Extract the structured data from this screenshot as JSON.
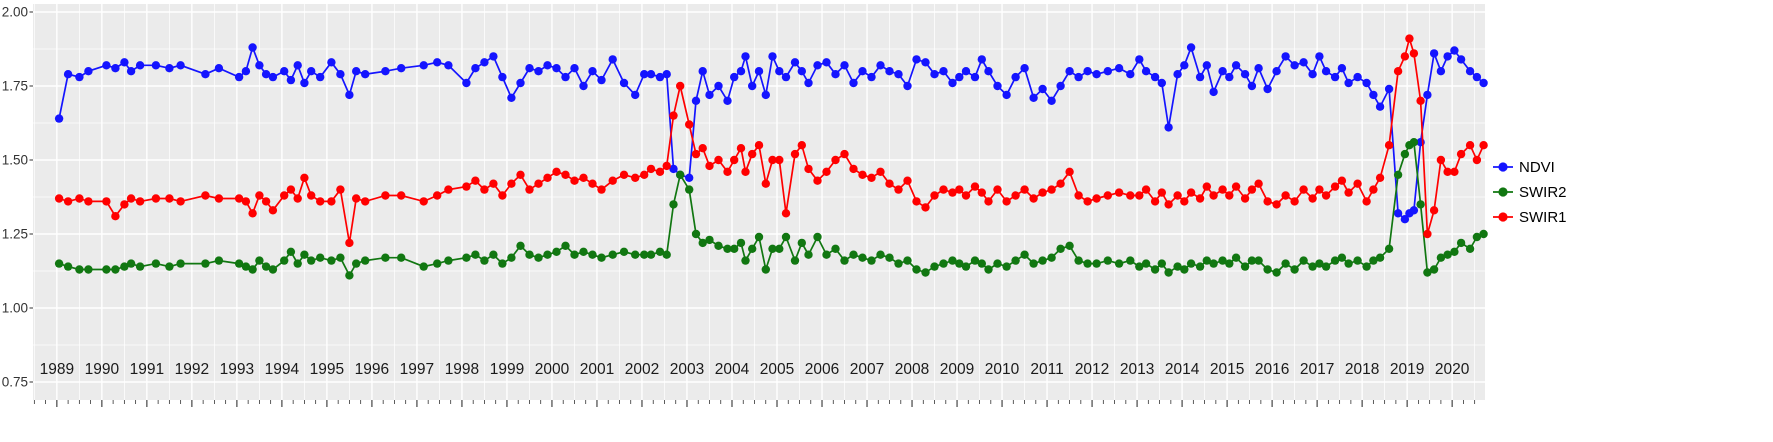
{
  "figure": {
    "background": "#FFFFFF",
    "panel_background": "#EBEBEB",
    "grid_color": "#FFFFFF",
    "axis_text_color": "#1A1A1A"
  },
  "legend": {
    "position": "right",
    "items": [
      {
        "label": "NDVI",
        "color": "#1414FF"
      },
      {
        "label": "SWIR2",
        "color": "#117711"
      },
      {
        "label": "SWIR1",
        "color": "#FF0000"
      }
    ]
  },
  "chart_data": {
    "type": "line",
    "title": "",
    "xlabel": "",
    "ylabel": "",
    "grid": true,
    "legend_position": "right",
    "xlim": [
      1988.47,
      2020.73
    ],
    "ylim": [
      0.75,
      2.0
    ],
    "y_ticks": [
      2.0,
      1.75,
      1.5,
      1.25,
      1.0,
      0.75
    ],
    "y_tick_labels": [
      "2.00",
      "1.75",
      "1.50",
      "1.25",
      "1.00",
      "0.75"
    ],
    "x_ticks": [
      1989,
      1990,
      1991,
      1992,
      1993,
      1994,
      1995,
      1996,
      1997,
      1998,
      1999,
      2000,
      2001,
      2002,
      2003,
      2004,
      2005,
      2006,
      2007,
      2008,
      2009,
      2010,
      2011,
      2012,
      2013,
      2014,
      2015,
      2016,
      2017,
      2018,
      2019,
      2020
    ],
    "x_tick_labels": [
      "1989",
      "1990",
      "1991",
      "1992",
      "1993",
      "1994",
      "1995",
      "1996",
      "1997",
      "1998",
      "1999",
      "2000",
      "2001",
      "2002",
      "2003",
      "2004",
      "2005",
      "2006",
      "2007",
      "2008",
      "2009",
      "2010",
      "2011",
      "2012",
      "2013",
      "2014",
      "2015",
      "2016",
      "2017",
      "2018",
      "2019",
      "2020"
    ],
    "x": [
      1989.05,
      1989.25,
      1989.5,
      1989.7,
      1990.1,
      1990.3,
      1990.5,
      1990.65,
      1990.85,
      1991.2,
      1991.5,
      1991.75,
      1992.3,
      1992.6,
      1993.05,
      1993.2,
      1993.35,
      1993.5,
      1993.65,
      1993.8,
      1994.05,
      1994.2,
      1994.35,
      1994.5,
      1994.65,
      1994.85,
      1995.1,
      1995.3,
      1995.5,
      1995.65,
      1995.85,
      1996.3,
      1996.65,
      1997.15,
      1997.45,
      1997.7,
      1998.1,
      1998.3,
      1998.5,
      1998.7,
      1998.9,
      1999.1,
      1999.3,
      1999.5,
      1999.7,
      1999.9,
      2000.1,
      2000.3,
      2000.5,
      2000.7,
      2000.9,
      2001.1,
      2001.35,
      2001.6,
      2001.85,
      2002.05,
      2002.2,
      2002.4,
      2002.55,
      2002.7,
      2002.85,
      2003.05,
      2003.2,
      2003.35,
      2003.5,
      2003.7,
      2003.9,
      2004.05,
      2004.2,
      2004.3,
      2004.45,
      2004.6,
      2004.75,
      2004.9,
      2005.05,
      2005.2,
      2005.4,
      2005.55,
      2005.7,
      2005.9,
      2006.1,
      2006.3,
      2006.5,
      2006.7,
      2006.9,
      2007.1,
      2007.3,
      2007.5,
      2007.7,
      2007.9,
      2008.1,
      2008.3,
      2008.5,
      2008.7,
      2008.9,
      2009.05,
      2009.2,
      2009.4,
      2009.55,
      2009.7,
      2009.9,
      2010.1,
      2010.3,
      2010.5,
      2010.7,
      2010.9,
      2011.1,
      2011.3,
      2011.5,
      2011.7,
      2011.9,
      2012.1,
      2012.35,
      2012.6,
      2012.85,
      2013.05,
      2013.2,
      2013.4,
      2013.55,
      2013.7,
      2013.9,
      2014.05,
      2014.2,
      2014.4,
      2014.55,
      2014.7,
      2014.9,
      2015.05,
      2015.2,
      2015.4,
      2015.55,
      2015.7,
      2015.9,
      2016.1,
      2016.3,
      2016.5,
      2016.7,
      2016.9,
      2017.05,
      2017.2,
      2017.4,
      2017.55,
      2017.7,
      2017.9,
      2018.1,
      2018.25,
      2018.4,
      2018.6,
      2018.8,
      2018.95,
      2019.05,
      2019.15,
      2019.3,
      2019.45,
      2019.6,
      2019.75,
      2019.9,
      2020.05,
      2020.2,
      2020.4,
      2020.55,
      2020.7
    ],
    "series": [
      {
        "name": "NDVI",
        "color": "#1414FF",
        "values": [
          1.64,
          1.79,
          1.78,
          1.8,
          1.82,
          1.81,
          1.83,
          1.8,
          1.82,
          1.82,
          1.81,
          1.82,
          1.79,
          1.81,
          1.78,
          1.8,
          1.88,
          1.82,
          1.79,
          1.78,
          1.8,
          1.77,
          1.82,
          1.76,
          1.8,
          1.78,
          1.83,
          1.79,
          1.72,
          1.8,
          1.79,
          1.8,
          1.81,
          1.82,
          1.83,
          1.82,
          1.76,
          1.81,
          1.83,
          1.85,
          1.78,
          1.71,
          1.76,
          1.81,
          1.8,
          1.82,
          1.81,
          1.78,
          1.81,
          1.75,
          1.8,
          1.77,
          1.84,
          1.76,
          1.72,
          1.79,
          1.79,
          1.78,
          1.79,
          1.47,
          1.45,
          1.44,
          1.7,
          1.8,
          1.72,
          1.75,
          1.7,
          1.78,
          1.8,
          1.85,
          1.75,
          1.8,
          1.72,
          1.85,
          1.8,
          1.78,
          1.83,
          1.8,
          1.76,
          1.82,
          1.83,
          1.79,
          1.82,
          1.76,
          1.8,
          1.78,
          1.82,
          1.8,
          1.79,
          1.75,
          1.84,
          1.83,
          1.79,
          1.8,
          1.76,
          1.78,
          1.8,
          1.78,
          1.84,
          1.8,
          1.75,
          1.72,
          1.78,
          1.81,
          1.71,
          1.74,
          1.7,
          1.75,
          1.8,
          1.78,
          1.8,
          1.79,
          1.8,
          1.81,
          1.79,
          1.84,
          1.8,
          1.78,
          1.76,
          1.61,
          1.79,
          1.82,
          1.88,
          1.78,
          1.82,
          1.73,
          1.8,
          1.78,
          1.82,
          1.79,
          1.75,
          1.81,
          1.74,
          1.8,
          1.85,
          1.82,
          1.83,
          1.79,
          1.85,
          1.8,
          1.78,
          1.81,
          1.76,
          1.78,
          1.76,
          1.72,
          1.68,
          1.74,
          1.32,
          1.3,
          1.32,
          1.33,
          1.56,
          1.72,
          1.86,
          1.8,
          1.85,
          1.87,
          1.84,
          1.8,
          1.78,
          1.76
        ]
      },
      {
        "name": "SWIR2",
        "color": "#117711",
        "values": [
          1.15,
          1.14,
          1.13,
          1.13,
          1.13,
          1.13,
          1.14,
          1.15,
          1.14,
          1.15,
          1.14,
          1.15,
          1.15,
          1.16,
          1.15,
          1.14,
          1.13,
          1.16,
          1.14,
          1.13,
          1.16,
          1.19,
          1.15,
          1.18,
          1.16,
          1.17,
          1.16,
          1.17,
          1.11,
          1.15,
          1.16,
          1.17,
          1.17,
          1.14,
          1.15,
          1.16,
          1.17,
          1.18,
          1.16,
          1.18,
          1.15,
          1.17,
          1.21,
          1.18,
          1.17,
          1.18,
          1.19,
          1.21,
          1.18,
          1.19,
          1.18,
          1.17,
          1.18,
          1.19,
          1.18,
          1.18,
          1.18,
          1.19,
          1.18,
          1.35,
          1.45,
          1.4,
          1.25,
          1.22,
          1.23,
          1.21,
          1.2,
          1.2,
          1.22,
          1.16,
          1.2,
          1.24,
          1.13,
          1.2,
          1.2,
          1.24,
          1.16,
          1.22,
          1.18,
          1.24,
          1.18,
          1.2,
          1.16,
          1.18,
          1.17,
          1.16,
          1.18,
          1.17,
          1.15,
          1.16,
          1.13,
          1.12,
          1.14,
          1.15,
          1.16,
          1.15,
          1.14,
          1.16,
          1.15,
          1.13,
          1.15,
          1.14,
          1.16,
          1.18,
          1.15,
          1.16,
          1.17,
          1.2,
          1.21,
          1.16,
          1.15,
          1.15,
          1.16,
          1.15,
          1.16,
          1.14,
          1.15,
          1.13,
          1.15,
          1.12,
          1.14,
          1.13,
          1.15,
          1.14,
          1.16,
          1.15,
          1.16,
          1.15,
          1.17,
          1.14,
          1.16,
          1.16,
          1.13,
          1.12,
          1.15,
          1.13,
          1.16,
          1.14,
          1.15,
          1.14,
          1.16,
          1.17,
          1.15,
          1.16,
          1.14,
          1.16,
          1.17,
          1.2,
          1.45,
          1.52,
          1.55,
          1.56,
          1.35,
          1.12,
          1.13,
          1.17,
          1.18,
          1.19,
          1.22,
          1.2,
          1.24,
          1.25
        ]
      },
      {
        "name": "SWIR1",
        "color": "#FF0000",
        "values": [
          1.37,
          1.36,
          1.37,
          1.36,
          1.36,
          1.31,
          1.35,
          1.37,
          1.36,
          1.37,
          1.37,
          1.36,
          1.38,
          1.37,
          1.37,
          1.36,
          1.32,
          1.38,
          1.36,
          1.33,
          1.38,
          1.4,
          1.37,
          1.44,
          1.38,
          1.36,
          1.36,
          1.4,
          1.22,
          1.37,
          1.36,
          1.38,
          1.38,
          1.36,
          1.38,
          1.4,
          1.41,
          1.43,
          1.4,
          1.42,
          1.38,
          1.42,
          1.45,
          1.4,
          1.42,
          1.44,
          1.46,
          1.45,
          1.43,
          1.44,
          1.42,
          1.4,
          1.43,
          1.45,
          1.44,
          1.45,
          1.47,
          1.46,
          1.48,
          1.65,
          1.75,
          1.62,
          1.52,
          1.54,
          1.48,
          1.5,
          1.46,
          1.5,
          1.54,
          1.46,
          1.52,
          1.55,
          1.42,
          1.5,
          1.5,
          1.32,
          1.52,
          1.55,
          1.47,
          1.43,
          1.46,
          1.5,
          1.52,
          1.47,
          1.45,
          1.44,
          1.46,
          1.42,
          1.4,
          1.43,
          1.36,
          1.34,
          1.38,
          1.4,
          1.39,
          1.4,
          1.38,
          1.41,
          1.39,
          1.36,
          1.4,
          1.36,
          1.38,
          1.4,
          1.37,
          1.39,
          1.4,
          1.42,
          1.46,
          1.38,
          1.36,
          1.37,
          1.38,
          1.39,
          1.38,
          1.38,
          1.4,
          1.36,
          1.39,
          1.35,
          1.38,
          1.36,
          1.39,
          1.37,
          1.41,
          1.38,
          1.4,
          1.38,
          1.41,
          1.37,
          1.4,
          1.42,
          1.36,
          1.35,
          1.38,
          1.36,
          1.4,
          1.37,
          1.4,
          1.38,
          1.41,
          1.43,
          1.39,
          1.42,
          1.36,
          1.4,
          1.44,
          1.55,
          1.8,
          1.85,
          1.91,
          1.86,
          1.7,
          1.25,
          1.33,
          1.5,
          1.46,
          1.46,
          1.52,
          1.55,
          1.5,
          1.55
        ]
      }
    ]
  }
}
